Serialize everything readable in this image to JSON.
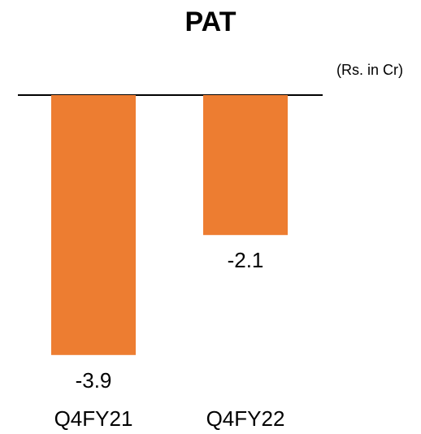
{
  "chart_data": {
    "type": "bar",
    "title": "PAT",
    "unit_note": "(Rs. in Cr)",
    "categories": [
      "Q4FY21",
      "Q4FY22"
    ],
    "values": [
      -3.9,
      -2.1
    ],
    "data_labels": [
      "-3.9",
      "-2.1"
    ],
    "ylim": [
      -3.9,
      0
    ],
    "grid": false,
    "legend": "none",
    "bar_color": "#ED7D31",
    "baseline_color": "#000000"
  }
}
